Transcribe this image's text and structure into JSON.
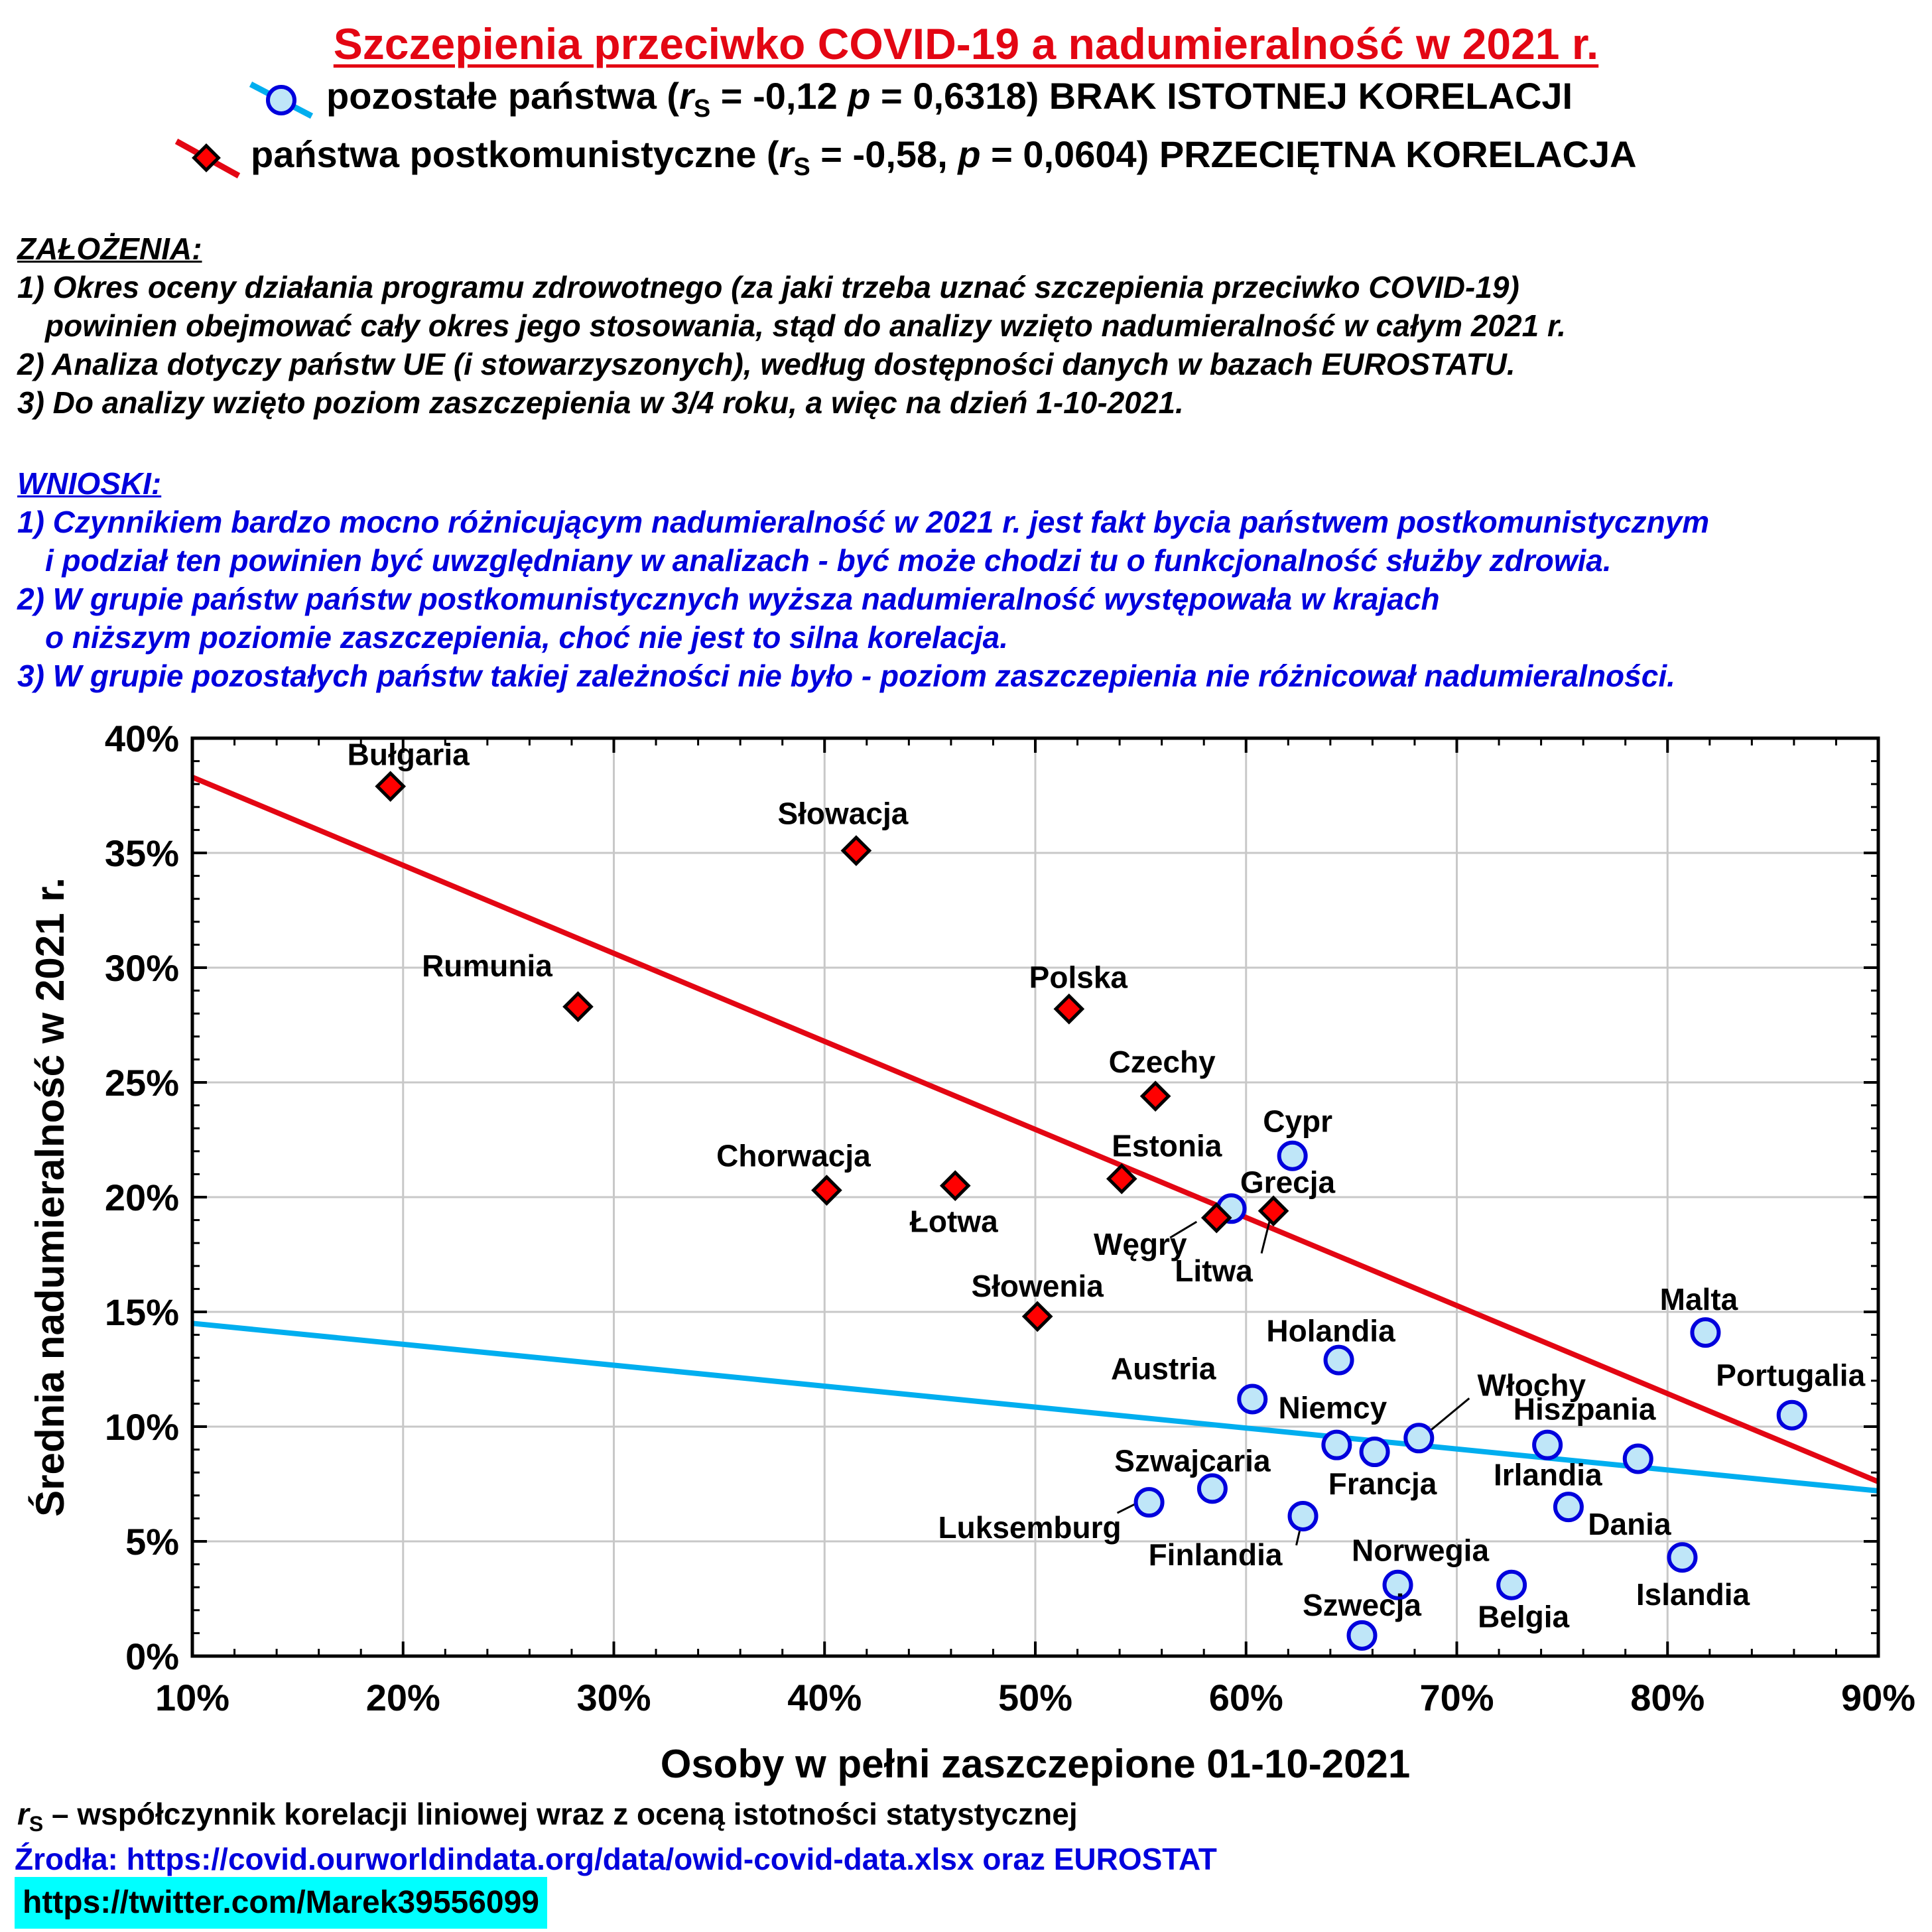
{
  "title": "Szczepienia przeciwko COVID-19 a nadumieralność w 2021 r.",
  "legend": [
    {
      "marker": "circle",
      "color": "#00aeef",
      "fill": "#bfe6f8",
      "stroke": "#0000dd",
      "prefix": "pozostałe państwa (",
      "r_symbol": "r",
      "r_sub": "S",
      "r_value": " = -0,12  ",
      "p_symbol": "p",
      "p_value": " = 0,6318) BRAK ISTOTNEJ KORELACJI"
    },
    {
      "marker": "diamond",
      "color": "#e30613",
      "fill": "#ff0000",
      "stroke": "#000000",
      "prefix": "państwa postkomunistyczne (",
      "r_symbol": "r",
      "r_sub": "S",
      "r_value": " = -0,58,  ",
      "p_symbol": "p",
      "p_value": " = 0,0604) PRZECIĘTNA KORELACJA"
    }
  ],
  "assumptions": {
    "heading": "ZAŁOŻENIA:",
    "lines": [
      "1) Okres oceny działania programu zdrowotnego (za jaki trzeba uznać szczepienia przeciwko COVID-19)",
      "powinien obejmować cały okres jego stosowania, stąd do analizy wzięto nadumieralność w całym 2021 r.",
      "2) Analiza dotyczy państw UE (i stowarzyszonych), według dostępności danych w bazach EUROSTATU.",
      "3) Do analizy wzięto poziom zaszczepienia w 3/4 roku, a więc na dzień 1-10-2021."
    ]
  },
  "conclusions": {
    "heading": "WNIOSKI:",
    "lines": [
      "1) Czynnikiem bardzo mocno różnicującym nadumieralność w 2021 r. jest fakt bycia państwem postkomunistycznym",
      "i podział ten powinien być uwzględniany w analizach - być może chodzi tu o funkcjonalność służby zdrowia.",
      "2) W grupie państw państw postkomunistycznych wyższa nadumieralność występowała w krajach",
      "o niższym poziomie zaszczepienia, choć nie jest to silna korelacja.",
      "3) W grupie pozostałych państw takiej zależności nie było - poziom zaszczepienia nie różnicował nadumieralności."
    ]
  },
  "chart_data": {
    "type": "scatter",
    "xlabel": "Osoby w pełni zaszczepione 01-10-2021",
    "ylabel": "Średnia nadumieralność w 2021 r.",
    "xlim": [
      10,
      90
    ],
    "ylim": [
      0,
      40
    ],
    "x_ticks": [
      10,
      20,
      30,
      40,
      50,
      60,
      70,
      80,
      90
    ],
    "y_ticks": [
      0,
      5,
      10,
      15,
      20,
      25,
      30,
      35,
      40
    ],
    "x_tick_labels": [
      "10%",
      "20%",
      "30%",
      "40%",
      "50%",
      "60%",
      "70%",
      "80%",
      "90%"
    ],
    "y_tick_labels": [
      "0%",
      "5%",
      "10%",
      "15%",
      "20%",
      "25%",
      "30%",
      "35%",
      "40%"
    ],
    "grid": true,
    "series": [
      {
        "name": "państwa postkomunistyczne",
        "marker": "diamond",
        "trend": {
          "color": "#e30613",
          "x": [
            10,
            90
          ],
          "y": [
            38.3,
            7.6
          ]
        },
        "points": [
          {
            "label": "Bułgaria",
            "x": 19.4,
            "y": 37.9
          },
          {
            "label": "Słowacja",
            "x": 41.5,
            "y": 35.1
          },
          {
            "label": "Rumunia",
            "x": 28.3,
            "y": 28.3
          },
          {
            "label": "Polska",
            "x": 51.6,
            "y": 28.2
          },
          {
            "label": "Czechy",
            "x": 55.7,
            "y": 24.4
          },
          {
            "label": "Estonia",
            "x": 54.1,
            "y": 20.8
          },
          {
            "label": "Chorwacja",
            "x": 40.1,
            "y": 20.3
          },
          {
            "label": "Łotwa",
            "x": 46.2,
            "y": 20.5
          },
          {
            "label": "Węgry",
            "x": 58.6,
            "y": 19.1
          },
          {
            "label": "Litwa",
            "x": 61.3,
            "y": 19.4
          },
          {
            "label": "Słowenia",
            "x": 50.1,
            "y": 14.8
          }
        ]
      },
      {
        "name": "pozostałe państwa",
        "marker": "circle",
        "trend": {
          "color": "#00aeef",
          "x": [
            10,
            90
          ],
          "y": [
            14.5,
            7.2
          ]
        },
        "points": [
          {
            "label": "Cypr",
            "x": 62.2,
            "y": 21.8
          },
          {
            "label": "Grecja",
            "x": 59.3,
            "y": 19.5
          },
          {
            "label": "Malta",
            "x": 81.8,
            "y": 14.1
          },
          {
            "label": "Holandia",
            "x": 64.4,
            "y": 12.9
          },
          {
            "label": "Portugalia",
            "x": 85.9,
            "y": 10.5
          },
          {
            "label": "Austria",
            "x": 60.3,
            "y": 11.2
          },
          {
            "label": "Włochy",
            "x": 68.2,
            "y": 9.5
          },
          {
            "label": "Hiszpania",
            "x": 74.3,
            "y": 9.2
          },
          {
            "label": "Niemcy",
            "x": 64.3,
            "y": 9.2
          },
          {
            "label": "Francja",
            "x": 66.1,
            "y": 8.9
          },
          {
            "label": "Irlandia",
            "x": 78.6,
            "y": 8.6
          },
          {
            "label": "Szwajcaria",
            "x": 58.4,
            "y": 7.3
          },
          {
            "label": "Luksemburg",
            "x": 55.4,
            "y": 6.7
          },
          {
            "label": "Finlandia",
            "x": 62.7,
            "y": 6.1
          },
          {
            "label": "Dania",
            "x": 75.3,
            "y": 6.5
          },
          {
            "label": "Islandia",
            "x": 80.7,
            "y": 4.3
          },
          {
            "label": "Norwegia",
            "x": 67.2,
            "y": 3.1
          },
          {
            "label": "Belgia",
            "x": 72.6,
            "y": 3.1
          },
          {
            "label": "Szwecja",
            "x": 65.5,
            "y": 0.9
          }
        ]
      }
    ]
  },
  "footer": {
    "rs_symbol": "r",
    "rs_sub": "S",
    "rs_text": " – współczynnik korelacji liniowej wraz z oceną istotności statystycznej",
    "sources": "Źrodła: https://covid.ourworldindata.org/data/owid-covid-data.xlsx oraz EUROSTAT",
    "twitter": "https://twitter.com/Marek39556099"
  },
  "colors": {
    "title": "#e30613",
    "blue_text": "#0000dd",
    "badge": "#00ffff"
  }
}
